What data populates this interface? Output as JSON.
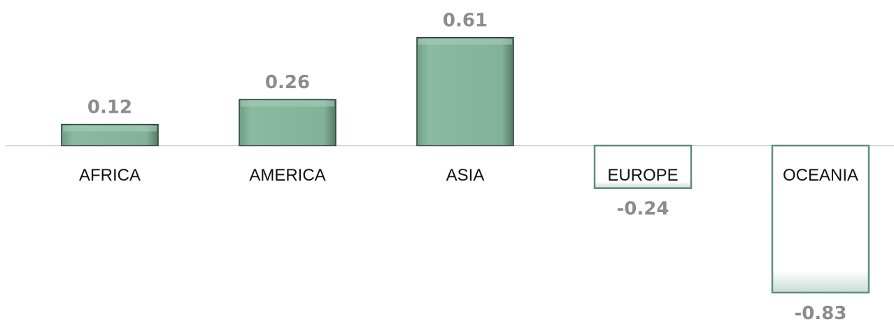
{
  "chart_data": {
    "type": "bar",
    "categories": [
      "AFRICA",
      "AMERICA",
      "ASIA",
      "EUROPE",
      "OCEANIA"
    ],
    "values": [
      0.12,
      0.26,
      0.61,
      -0.24,
      -0.83
    ],
    "value_labels": [
      "0.12",
      "0.26",
      "0.61",
      "-0.24",
      "-0.83"
    ],
    "ylim": [
      -0.83,
      0.61
    ],
    "grid": false,
    "legend": "none",
    "colors": {
      "positive_fill": "#82b29a",
      "positive_edge": "#2a3f35",
      "negative_fill": "#ffffff",
      "negative_edge": "#5f8f78",
      "axis": "#d6d6d6",
      "value_text": "#8c8c8c",
      "category_text": "#111111"
    }
  }
}
